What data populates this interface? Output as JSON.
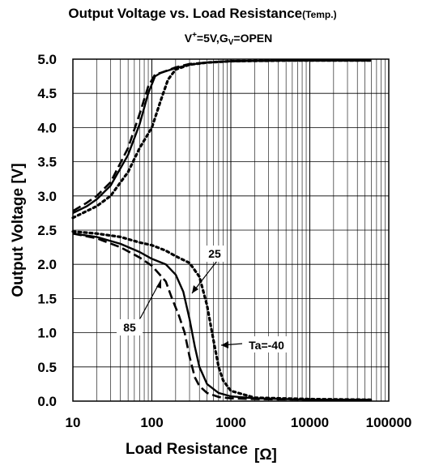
{
  "chart_data": {
    "type": "line",
    "title": "Output Voltage vs. Load Resistance",
    "title_suffix": "(Temp.)",
    "subtitle": {
      "parts": [
        "V",
        "+",
        "=5V,G",
        "V",
        "=OPEN"
      ]
    },
    "xlabel": "Load Resistance",
    "xlabel_unit": "[Ω]",
    "ylabel": "Output Voltage [V]",
    "x_scale": "log",
    "xlim": [
      10,
      100000
    ],
    "ylim": [
      0,
      5
    ],
    "x_ticks": [
      "10",
      "100",
      "1000",
      "10000",
      "100000"
    ],
    "y_ticks": [
      "0.0",
      "0.5",
      "1.0",
      "1.5",
      "2.0",
      "2.5",
      "3.0",
      "3.5",
      "4.0",
      "4.5",
      "5.0"
    ],
    "grid": true,
    "series": [
      {
        "name": "25",
        "style": "solid",
        "upper": {
          "x": [
            10,
            15,
            20,
            30,
            50,
            70,
            90,
            110,
            130,
            200,
            300,
            500,
            1000,
            5000,
            60000
          ],
          "y": [
            2.75,
            2.85,
            2.95,
            3.15,
            3.6,
            4.05,
            4.5,
            4.75,
            4.8,
            4.87,
            4.92,
            4.95,
            4.97,
            4.98,
            4.98
          ]
        },
        "lower": {
          "x": [
            10,
            20,
            40,
            70,
            100,
            150,
            200,
            250,
            300,
            350,
            400,
            500,
            700,
            1000,
            2000,
            10000,
            60000
          ],
          "y": [
            2.45,
            2.4,
            2.3,
            2.18,
            2.08,
            2.0,
            1.85,
            1.6,
            1.2,
            0.8,
            0.5,
            0.25,
            0.12,
            0.07,
            0.04,
            0.02,
            0.02
          ]
        }
      },
      {
        "name": "Ta=-40",
        "style": "dotted",
        "upper": {
          "x": [
            10,
            15,
            20,
            30,
            50,
            70,
            100,
            130,
            160,
            200,
            300,
            500,
            1000,
            5000,
            60000
          ],
          "y": [
            2.68,
            2.78,
            2.85,
            3.0,
            3.35,
            3.7,
            4.0,
            4.4,
            4.7,
            4.85,
            4.92,
            4.95,
            4.97,
            4.98,
            4.98
          ]
        },
        "lower": {
          "x": [
            10,
            20,
            40,
            70,
            100,
            150,
            200,
            300,
            400,
            500,
            600,
            700,
            800,
            1000,
            2000,
            10000,
            60000
          ],
          "y": [
            2.48,
            2.45,
            2.4,
            2.32,
            2.28,
            2.2,
            2.12,
            2.02,
            1.82,
            1.4,
            0.9,
            0.5,
            0.3,
            0.15,
            0.05,
            0.03,
            0.02
          ]
        }
      },
      {
        "name": "85",
        "style": "dashed",
        "upper": {
          "x": [
            10,
            15,
            20,
            30,
            50,
            70,
            90,
            110,
            130,
            200,
            300,
            500,
            1000,
            5000,
            60000
          ],
          "y": [
            2.78,
            2.9,
            3.0,
            3.2,
            3.7,
            4.2,
            4.6,
            4.78,
            4.8,
            4.88,
            4.93,
            4.95,
            4.97,
            4.98,
            4.98
          ]
        },
        "lower": {
          "x": [
            10,
            20,
            40,
            70,
            100,
            150,
            180,
            220,
            260,
            300,
            350,
            400,
            500,
            700,
            1000,
            2000,
            10000,
            60000
          ],
          "y": [
            2.45,
            2.38,
            2.25,
            2.1,
            1.98,
            1.75,
            1.5,
            1.25,
            1.0,
            0.65,
            0.35,
            0.22,
            0.12,
            0.06,
            0.04,
            0.03,
            0.02,
            0.02
          ]
        }
      }
    ],
    "annotations": [
      {
        "text": "25"
      },
      {
        "text": "85"
      },
      {
        "text": "Ta=-40"
      }
    ]
  }
}
